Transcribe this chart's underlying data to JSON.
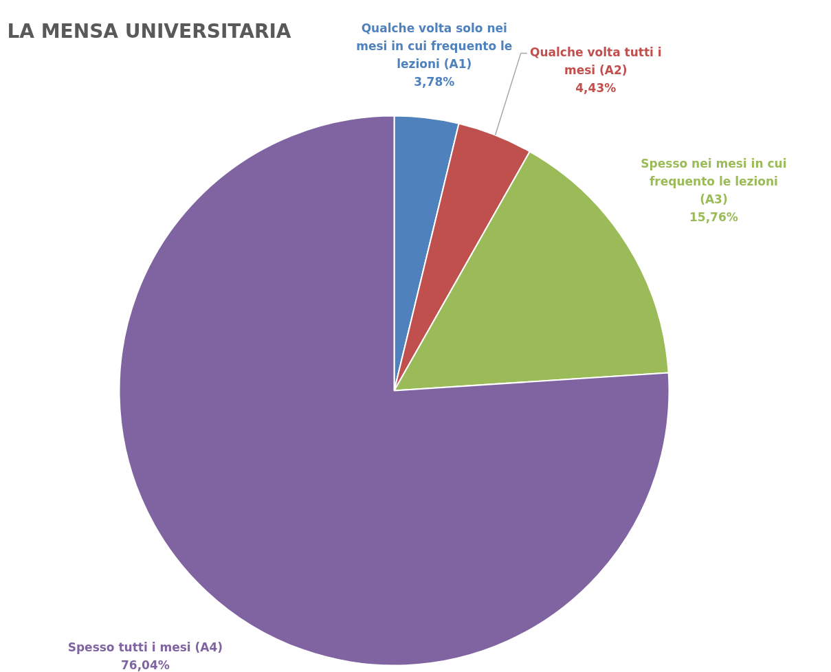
{
  "chart_data": {
    "type": "pie",
    "title": "LA MENSA UNIVERSITARIA",
    "categories": [
      "Qualche volta solo nei mesi in cui frequento le lezioni (A1)",
      "Qualche volta tutti i mesi (A2)",
      "Spesso nei mesi in cui frequento le lezioni (A3)",
      "Spesso tutti i mesi (A4)"
    ],
    "values": [
      3.78,
      4.43,
      15.76,
      76.04
    ],
    "value_labels": [
      "3,78%",
      "4,43%",
      "15,76%",
      "76,04%"
    ],
    "colors": [
      "#4f81bd",
      "#c0504d",
      "#9bbb59",
      "#8064a2"
    ]
  }
}
